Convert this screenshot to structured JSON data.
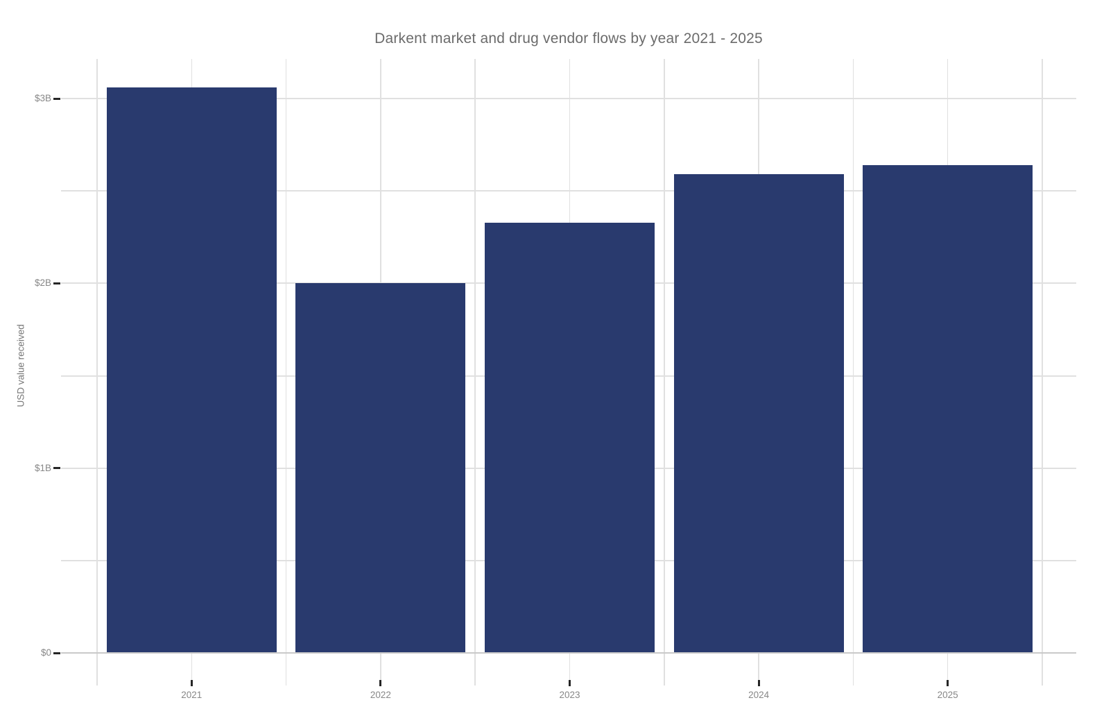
{
  "chart_data": {
    "type": "bar",
    "title": "Darkent market and drug vendor flows by year 2021 - 2025",
    "xlabel": "",
    "ylabel": "USD value received",
    "categories": [
      "2021",
      "2022",
      "2023",
      "2024",
      "2025"
    ],
    "values": [
      3.06,
      2.0,
      2.33,
      2.59,
      2.64
    ],
    "unit": "billions of USD",
    "ylim": [
      0,
      3.22
    ],
    "major_yticks": [
      0,
      1,
      2,
      3
    ],
    "ytick_labels": [
      "$0",
      "$1B",
      "$2B",
      "$3B"
    ],
    "minor_yticks": [
      0.5,
      1.5,
      2.5
    ],
    "grid": "major and minor gridlines on, light gray, white background",
    "legend_position": "none"
  },
  "colors": {
    "background": "#ffffff",
    "bar": "#293a6e",
    "gridline": "#e0e0e0",
    "axis_line": "#c9c9c9",
    "tick_mark": "#262626",
    "tick_label_text": "#878787",
    "title_text": "#6b6b6b",
    "axis_title_text": "#787878"
  }
}
